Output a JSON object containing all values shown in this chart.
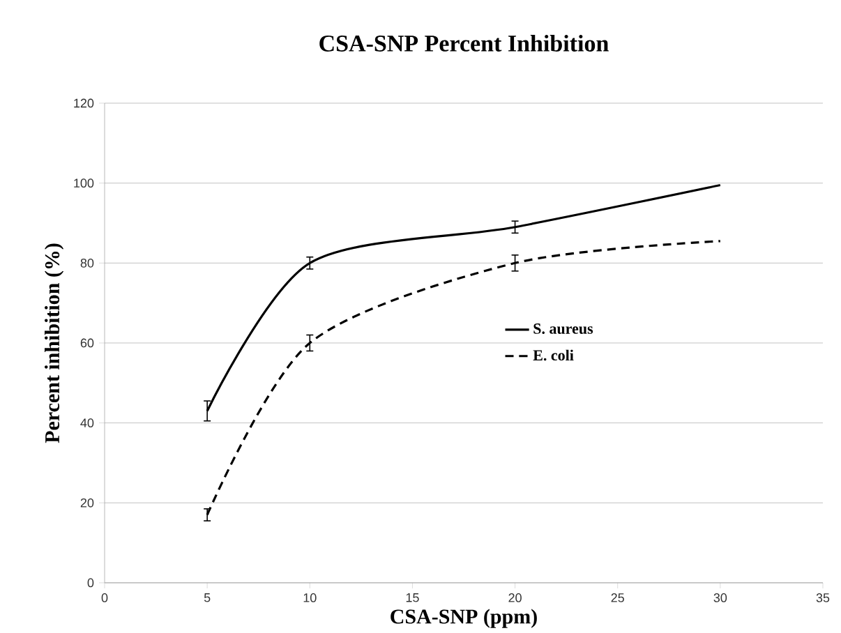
{
  "chart_data": {
    "type": "line",
    "title": "CSA-SNP Percent Inhibition",
    "xlabel": "CSA-SNP (ppm)",
    "ylabel": "Percent inhibition (%)",
    "x": [
      5,
      10,
      20,
      30
    ],
    "xlim": [
      0,
      35
    ],
    "xticks": [
      0,
      5,
      10,
      15,
      20,
      25,
      30,
      35
    ],
    "ylim": [
      0,
      120
    ],
    "yticks": [
      0,
      20,
      40,
      60,
      80,
      100,
      120
    ],
    "grid": "y",
    "legend": "right",
    "marker": "none",
    "series": [
      {
        "name": "S. aureus",
        "color": "#000000",
        "line_style": "solid",
        "values": [
          43,
          80,
          89,
          99.5
        ],
        "errors": [
          2.5,
          1.5,
          1.5,
          null
        ]
      },
      {
        "name": "E. coli",
        "color": "#000000",
        "line_style": "dashed",
        "values": [
          17,
          60,
          80,
          85.5
        ],
        "errors": [
          1.5,
          2,
          2,
          null
        ]
      }
    ]
  }
}
